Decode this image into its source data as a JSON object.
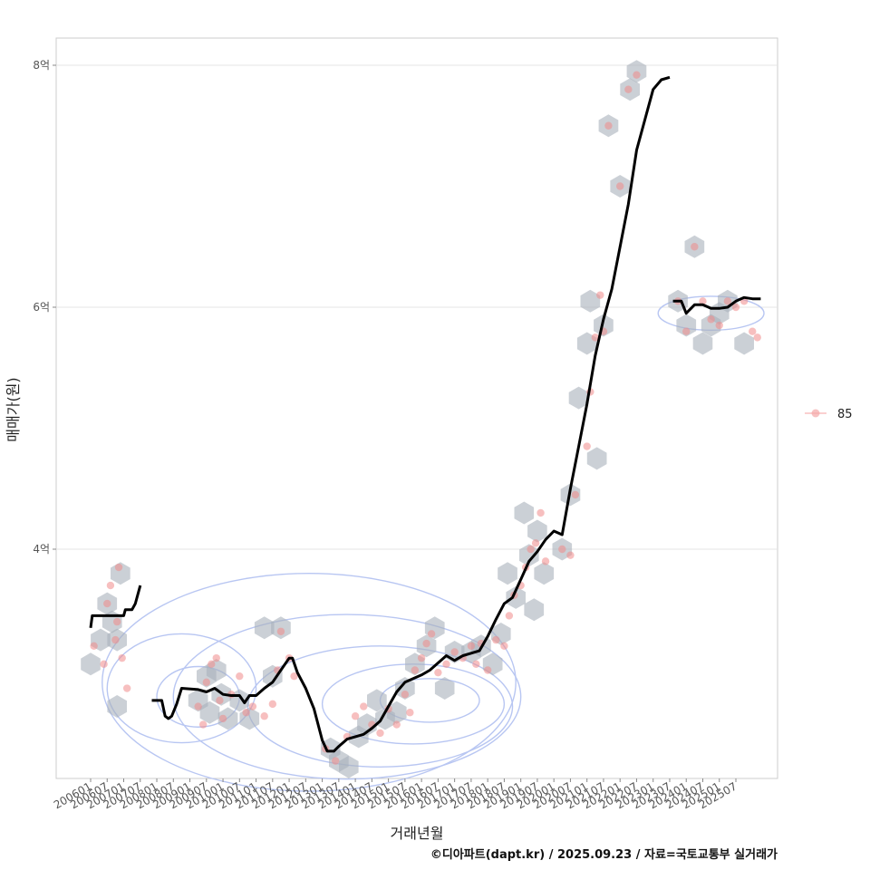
{
  "chart_data": {
    "type": "line",
    "title": "",
    "xlabel": "거래년월",
    "ylabel": "매매가(원)",
    "ylim": [
      2.0,
      8.2
    ],
    "y_ticks": [
      {
        "value": 4,
        "label": "4억"
      },
      {
        "value": 6,
        "label": "6억"
      },
      {
        "value": 8,
        "label": "8억"
      }
    ],
    "x_ticks": [
      "200601",
      "200607",
      "200701",
      "200707",
      "200801",
      "200807",
      "200901",
      "200907",
      "201001",
      "201007",
      "201101",
      "201107",
      "201201",
      "201207",
      "201301",
      "201307",
      "201401",
      "201407",
      "201501",
      "201507",
      "201601",
      "201607",
      "201701",
      "201707",
      "201801",
      "201807",
      "201901",
      "201907",
      "202001",
      "202007",
      "202101",
      "202107",
      "202201",
      "202207",
      "202301",
      "202307",
      "202401",
      "202407",
      "202501",
      "202507"
    ],
    "legend": [
      {
        "label": "85",
        "color": "#f08080"
      }
    ],
    "caption": "©디아파트(dapt.kr) / 2025.09.23 / 자료=국토교통부 실거래가",
    "series": [
      {
        "name": "85",
        "segments": [
          [
            [
              0.0,
              3.35
            ],
            [
              0.1,
              3.45
            ],
            [
              1.0,
              3.45
            ],
            [
              2.0,
              3.45
            ],
            [
              2.1,
              3.5
            ],
            [
              2.5,
              3.5
            ],
            [
              2.7,
              3.55
            ],
            [
              3.0,
              3.7
            ]
          ],
          [
            [
              3.7,
              2.75
            ],
            [
              4.3,
              2.75
            ],
            [
              4.5,
              2.62
            ],
            [
              4.7,
              2.6
            ],
            [
              4.9,
              2.62
            ],
            [
              5.2,
              2.72
            ],
            [
              5.5,
              2.85
            ],
            [
              6.5,
              2.84
            ],
            [
              7.0,
              2.82
            ],
            [
              7.5,
              2.85
            ],
            [
              8.0,
              2.8
            ],
            [
              8.5,
              2.79
            ],
            [
              9.0,
              2.79
            ],
            [
              9.3,
              2.73
            ],
            [
              9.6,
              2.79
            ],
            [
              10.0,
              2.79
            ],
            [
              10.5,
              2.85
            ],
            [
              11.0,
              2.9
            ],
            [
              11.5,
              3.0
            ],
            [
              12.0,
              3.1
            ],
            [
              12.2,
              3.1
            ],
            [
              12.5,
              2.98
            ],
            [
              13.0,
              2.85
            ],
            [
              13.5,
              2.68
            ],
            [
              14.0,
              2.42
            ],
            [
              14.3,
              2.33
            ],
            [
              14.7,
              2.33
            ],
            [
              15.0,
              2.37
            ],
            [
              15.5,
              2.43
            ],
            [
              16.0,
              2.45
            ],
            [
              16.5,
              2.47
            ],
            [
              17.0,
              2.52
            ],
            [
              17.5,
              2.58
            ],
            [
              18.0,
              2.7
            ],
            [
              18.5,
              2.82
            ],
            [
              19.0,
              2.9
            ],
            [
              19.5,
              2.93
            ],
            [
              20.0,
              2.96
            ],
            [
              20.5,
              3.0
            ],
            [
              21.0,
              3.06
            ],
            [
              21.5,
              3.12
            ],
            [
              22.0,
              3.08
            ],
            [
              22.5,
              3.12
            ],
            [
              23.0,
              3.14
            ],
            [
              23.5,
              3.16
            ],
            [
              24.0,
              3.28
            ],
            [
              24.5,
              3.42
            ],
            [
              25.0,
              3.55
            ],
            [
              25.5,
              3.6
            ],
            [
              26.0,
              3.75
            ],
            [
              26.5,
              3.9
            ],
            [
              27.0,
              3.98
            ],
            [
              27.5,
              4.08
            ],
            [
              28.0,
              4.15
            ],
            [
              28.5,
              4.12
            ],
            [
              29.0,
              4.5
            ],
            [
              29.5,
              4.85
            ],
            [
              30.0,
              5.2
            ],
            [
              30.5,
              5.6
            ],
            [
              31.0,
              5.9
            ],
            [
              31.5,
              6.15
            ],
            [
              32.0,
              6.5
            ],
            [
              32.5,
              6.85
            ],
            [
              33.0,
              7.3
            ],
            [
              33.5,
              7.55
            ],
            [
              34.0,
              7.8
            ],
            [
              34.5,
              7.88
            ],
            [
              35.0,
              7.9
            ]
          ],
          [
            [
              35.2,
              6.05
            ],
            [
              35.7,
              6.05
            ],
            [
              36.0,
              5.95
            ],
            [
              36.5,
              6.02
            ],
            [
              37.0,
              6.02
            ],
            [
              37.5,
              5.99
            ],
            [
              38.0,
              5.99
            ],
            [
              38.5,
              6.0
            ],
            [
              39.0,
              6.05
            ],
            [
              39.5,
              6.08
            ],
            [
              40.0,
              6.07
            ],
            [
              40.5,
              6.07
            ]
          ]
        ]
      }
    ],
    "points": [
      [
        0.2,
        3.2
      ],
      [
        0.8,
        3.05
      ],
      [
        1.0,
        3.55
      ],
      [
        1.2,
        3.7
      ],
      [
        1.5,
        3.25
      ],
      [
        1.6,
        3.4
      ],
      [
        1.7,
        3.85
      ],
      [
        1.9,
        3.1
      ],
      [
        2.2,
        2.85
      ],
      [
        6.5,
        2.7
      ],
      [
        6.8,
        2.55
      ],
      [
        7.0,
        2.9
      ],
      [
        7.3,
        3.05
      ],
      [
        7.6,
        3.1
      ],
      [
        7.8,
        2.75
      ],
      [
        8.0,
        2.6
      ],
      [
        8.5,
        2.8
      ],
      [
        9.0,
        2.95
      ],
      [
        9.4,
        2.65
      ],
      [
        9.8,
        2.7
      ],
      [
        10.5,
        2.62
      ],
      [
        11.0,
        2.72
      ],
      [
        11.3,
        3.0
      ],
      [
        11.5,
        3.32
      ],
      [
        12.0,
        3.1
      ],
      [
        12.3,
        2.95
      ],
      [
        14.2,
        2.35
      ],
      [
        14.8,
        2.25
      ],
      [
        15.5,
        2.45
      ],
      [
        16.0,
        2.62
      ],
      [
        16.5,
        2.7
      ],
      [
        17.0,
        2.55
      ],
      [
        17.5,
        2.48
      ],
      [
        18.0,
        2.68
      ],
      [
        18.5,
        2.55
      ],
      [
        19.0,
        2.8
      ],
      [
        19.3,
        2.65
      ],
      [
        19.6,
        3.0
      ],
      [
        20.0,
        3.1
      ],
      [
        20.3,
        3.22
      ],
      [
        20.6,
        3.3
      ],
      [
        21.0,
        2.98
      ],
      [
        21.5,
        3.05
      ],
      [
        22.0,
        3.15
      ],
      [
        22.5,
        3.1
      ],
      [
        23.0,
        3.2
      ],
      [
        23.3,
        3.05
      ],
      [
        23.6,
        3.22
      ],
      [
        24.0,
        3.0
      ],
      [
        24.5,
        3.25
      ],
      [
        25.0,
        3.2
      ],
      [
        25.3,
        3.45
      ],
      [
        25.6,
        3.62
      ],
      [
        26.0,
        3.7
      ],
      [
        26.3,
        3.85
      ],
      [
        26.6,
        4.0
      ],
      [
        26.9,
        4.05
      ],
      [
        27.2,
        4.3
      ],
      [
        27.5,
        3.9
      ],
      [
        28.5,
        4.0
      ],
      [
        29.0,
        3.95
      ],
      [
        29.3,
        4.45
      ],
      [
        30.0,
        4.85
      ],
      [
        30.2,
        5.3
      ],
      [
        30.5,
        5.75
      ],
      [
        30.8,
        6.1
      ],
      [
        31.0,
        5.8
      ],
      [
        31.3,
        7.5
      ],
      [
        32.0,
        7.0
      ],
      [
        32.5,
        7.8
      ],
      [
        33.0,
        7.92
      ],
      [
        35.5,
        6.05
      ],
      [
        36.0,
        5.8
      ],
      [
        36.5,
        6.5
      ],
      [
        37.0,
        6.05
      ],
      [
        37.5,
        5.9
      ],
      [
        38.0,
        5.85
      ],
      [
        38.5,
        6.05
      ],
      [
        39.0,
        6.0
      ],
      [
        39.5,
        6.05
      ],
      [
        40.0,
        5.8
      ],
      [
        40.3,
        5.75
      ]
    ],
    "hexes": [
      [
        0.0,
        3.05
      ],
      [
        0.6,
        3.25
      ],
      [
        1.0,
        3.55
      ],
      [
        1.3,
        3.4
      ],
      [
        1.6,
        3.25
      ],
      [
        1.8,
        3.8
      ],
      [
        1.6,
        2.7
      ],
      [
        6.5,
        2.75
      ],
      [
        7.0,
        2.95
      ],
      [
        7.6,
        3.0
      ],
      [
        7.2,
        2.65
      ],
      [
        7.9,
        2.8
      ],
      [
        8.3,
        2.6
      ],
      [
        9.0,
        2.75
      ],
      [
        9.6,
        2.6
      ],
      [
        10.5,
        3.35
      ],
      [
        11.0,
        2.95
      ],
      [
        11.5,
        3.35
      ],
      [
        14.5,
        2.35
      ],
      [
        15.0,
        2.25
      ],
      [
        15.6,
        2.2
      ],
      [
        16.2,
        2.45
      ],
      [
        16.7,
        2.55
      ],
      [
        17.3,
        2.75
      ],
      [
        17.8,
        2.6
      ],
      [
        18.5,
        2.65
      ],
      [
        19.0,
        2.85
      ],
      [
        19.6,
        3.05
      ],
      [
        20.3,
        3.2
      ],
      [
        20.8,
        3.35
      ],
      [
        21.4,
        2.85
      ],
      [
        22.0,
        3.15
      ],
      [
        23.0,
        3.15
      ],
      [
        23.6,
        3.2
      ],
      [
        24.3,
        3.05
      ],
      [
        24.8,
        3.3
      ],
      [
        25.2,
        3.8
      ],
      [
        25.7,
        3.6
      ],
      [
        26.2,
        4.3
      ],
      [
        26.5,
        3.95
      ],
      [
        26.8,
        3.5
      ],
      [
        27.0,
        4.15
      ],
      [
        27.4,
        3.8
      ],
      [
        28.5,
        4.0
      ],
      [
        29.0,
        4.45
      ],
      [
        29.5,
        5.25
      ],
      [
        30.0,
        5.7
      ],
      [
        30.2,
        6.05
      ],
      [
        30.6,
        4.75
      ],
      [
        31.0,
        5.85
      ],
      [
        31.3,
        7.5
      ],
      [
        32.0,
        7.0
      ],
      [
        32.6,
        7.8
      ],
      [
        33.0,
        7.95
      ],
      [
        35.5,
        6.05
      ],
      [
        36.0,
        5.85
      ],
      [
        36.5,
        6.5
      ],
      [
        37.0,
        5.7
      ],
      [
        37.5,
        5.85
      ],
      [
        38.0,
        5.95
      ],
      [
        38.5,
        6.05
      ],
      [
        39.5,
        5.7
      ]
    ],
    "density_contours": [
      {
        "cx": 13.2,
        "cy": 2.9,
        "rx": 12.5,
        "ry": 0.9
      },
      {
        "cx": 15.5,
        "cy": 2.78,
        "rx": 10.5,
        "ry": 0.68
      },
      {
        "cx": 17.5,
        "cy": 2.7,
        "rx": 8.0,
        "ry": 0.5
      },
      {
        "cx": 19.5,
        "cy": 2.72,
        "rx": 5.5,
        "ry": 0.33
      },
      {
        "cx": 20.5,
        "cy": 2.75,
        "rx": 3.0,
        "ry": 0.18
      },
      {
        "cx": 5.5,
        "cy": 2.85,
        "rx": 4.5,
        "ry": 0.45
      },
      {
        "cx": 6.5,
        "cy": 2.78,
        "rx": 2.5,
        "ry": 0.25
      },
      {
        "cx": 37.5,
        "cy": 5.95,
        "rx": 3.2,
        "ry": 0.14
      }
    ]
  }
}
